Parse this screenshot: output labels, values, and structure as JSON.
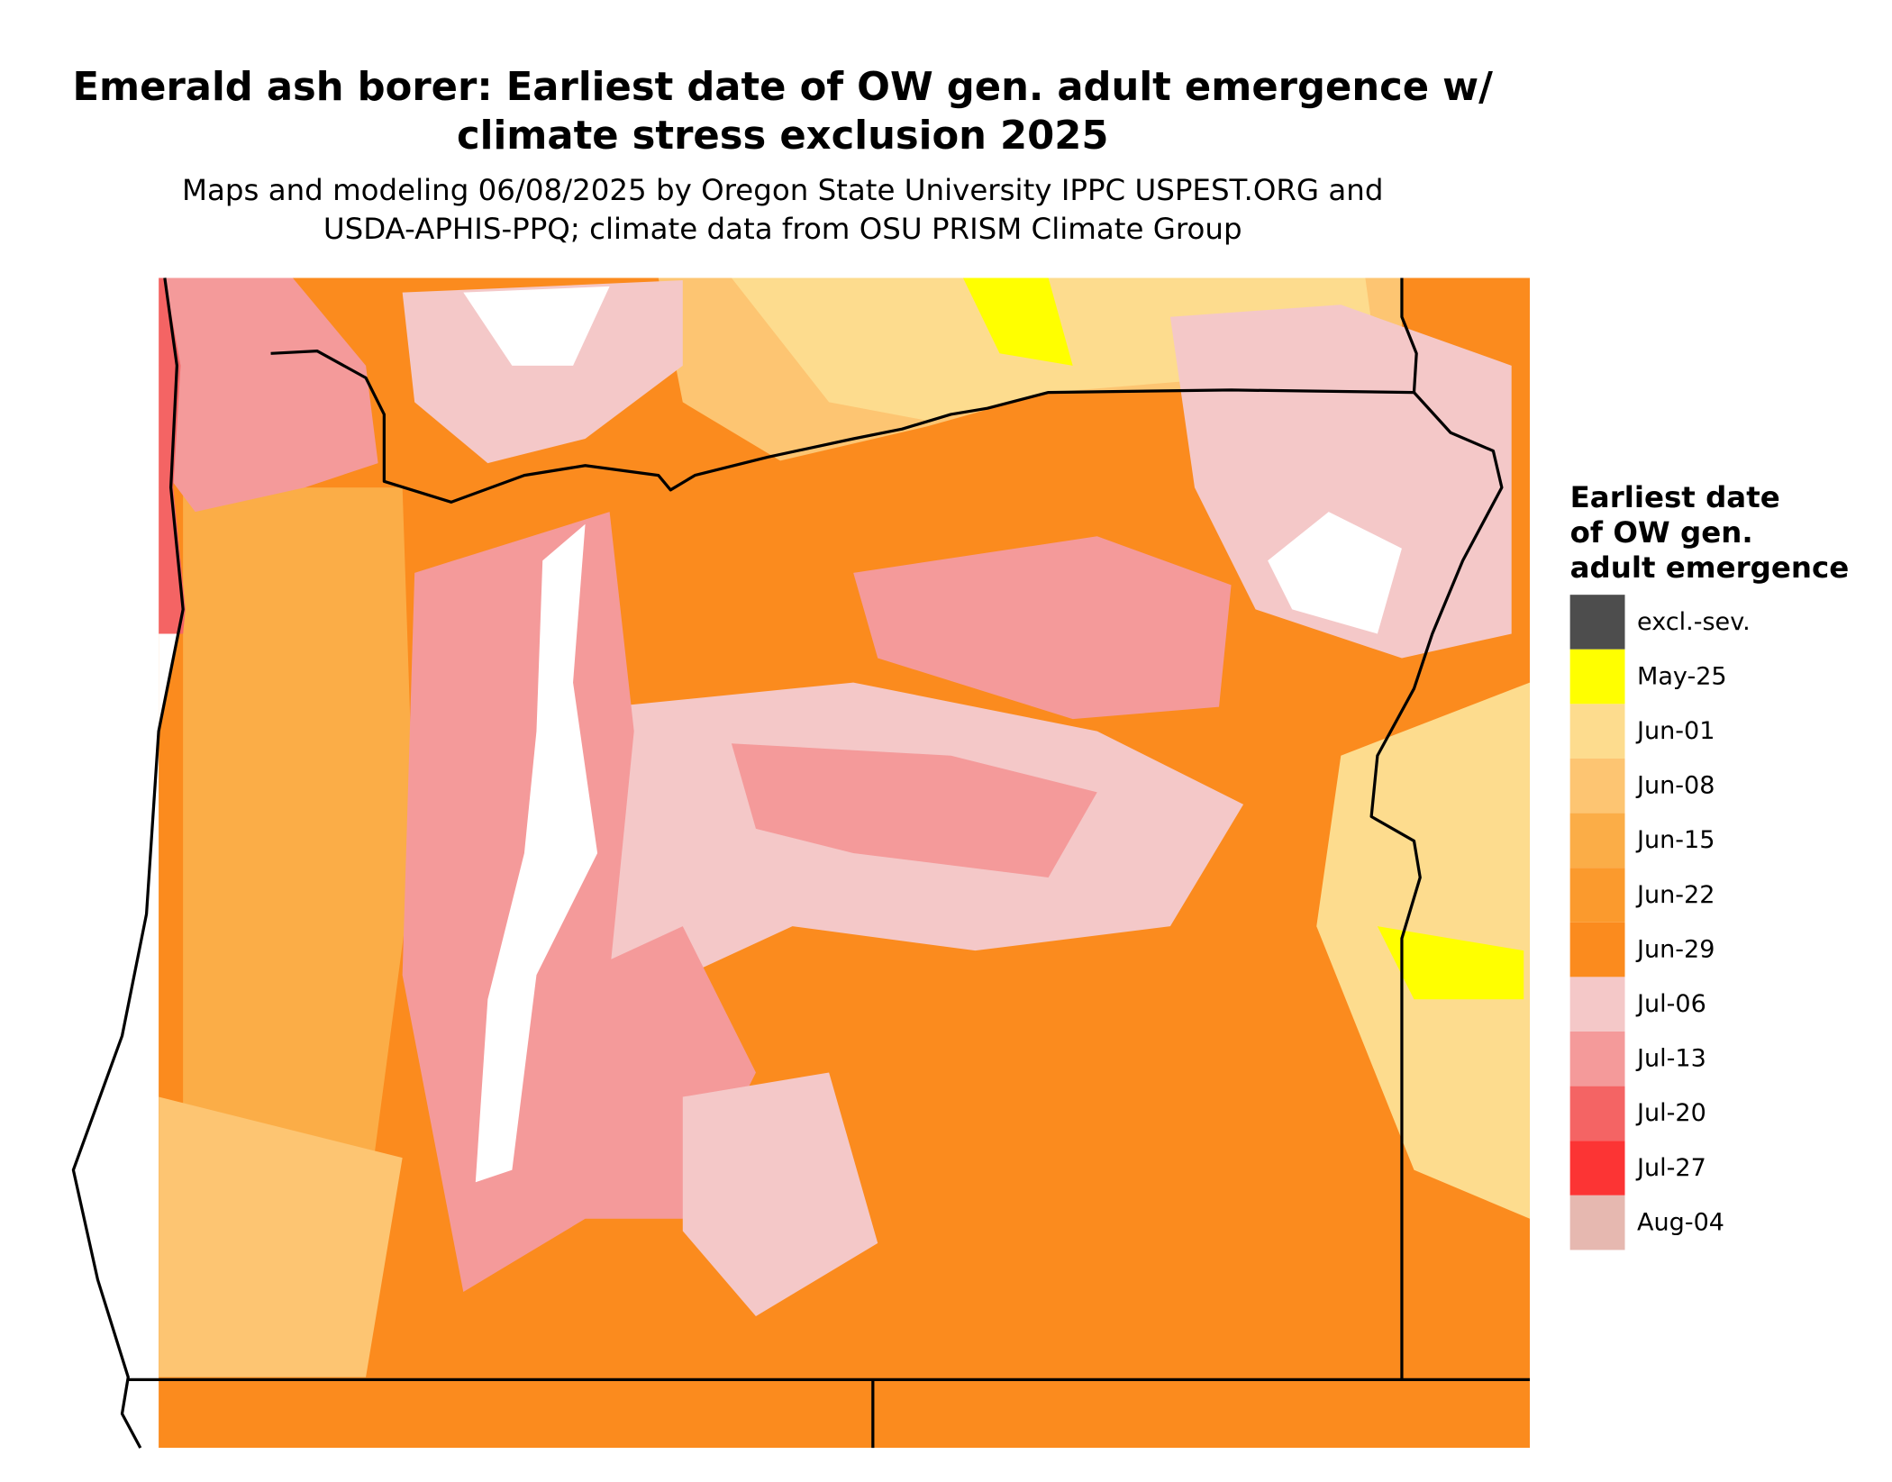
{
  "title": [
    "Emerald ash borer: Earliest date of OW gen. adult emergence w/",
    "climate stress exclusion 2025"
  ],
  "subtitle": [
    "Maps and modeling 06/08/2025 by Oregon State University IPPC USPEST.ORG and",
    "USDA-APHIS-PPQ; climate data from OSU PRISM Climate Group"
  ],
  "legend": {
    "title": [
      "Earliest date",
      "of OW gen.",
      "adult emergence"
    ],
    "items": [
      {
        "label": "excl.-sev.",
        "color": "#4d4d4d"
      },
      {
        "label": "May-25",
        "color": "#ffff00"
      },
      {
        "label": "Jun-01",
        "color": "#fddc8e"
      },
      {
        "label": "Jun-08",
        "color": "#fdc572"
      },
      {
        "label": "Jun-15",
        "color": "#fbad47"
      },
      {
        "label": "Jun-22",
        "color": "#fb9a2d"
      },
      {
        "label": "Jun-29",
        "color": "#fb8b1e"
      },
      {
        "label": "Jul-06",
        "color": "#f4c8c8"
      },
      {
        "label": "Jul-13",
        "color": "#f49a9a"
      },
      {
        "label": "Jul-20",
        "color": "#f46464"
      },
      {
        "label": "Jul-27",
        "color": "#fc3434"
      },
      {
        "label": "Aug-04",
        "color": "#e6b8b0"
      }
    ]
  }
}
